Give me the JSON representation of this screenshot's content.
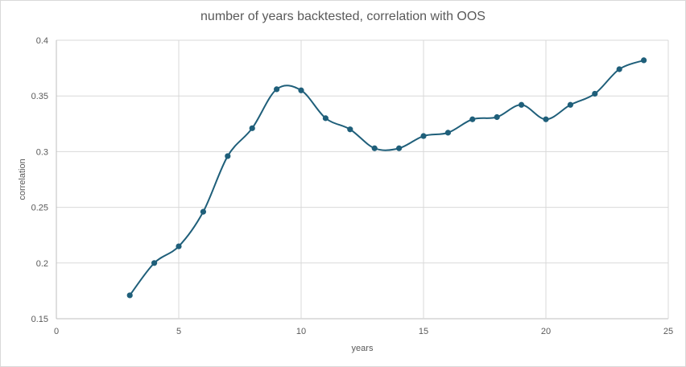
{
  "chart_data": {
    "type": "scatter",
    "title": "number of years backtested, correlation with OOS",
    "xlabel": "years",
    "ylabel": "correlation",
    "xlim": [
      0,
      25
    ],
    "ylim": [
      0.15,
      0.4
    ],
    "x_ticks": [
      "0",
      "5",
      "10",
      "15",
      "20",
      "25"
    ],
    "y_ticks": [
      "0.15",
      "0.2",
      "0.25",
      "0.3",
      "0.35",
      "0.4"
    ],
    "grid": true,
    "smooth_line": true,
    "series_color": "#1f5f7a",
    "series": [
      {
        "x": [
          3,
          4,
          5,
          6,
          7,
          8,
          9,
          10,
          11,
          12,
          13,
          14,
          15,
          16,
          17,
          18,
          19,
          20,
          21,
          22,
          23,
          24
        ],
        "y": [
          0.171,
          0.2,
          0.215,
          0.246,
          0.296,
          0.321,
          0.356,
          0.355,
          0.33,
          0.32,
          0.303,
          0.303,
          0.314,
          0.317,
          0.329,
          0.331,
          0.342,
          0.329,
          0.342,
          0.352,
          0.374,
          0.382
        ]
      }
    ]
  }
}
